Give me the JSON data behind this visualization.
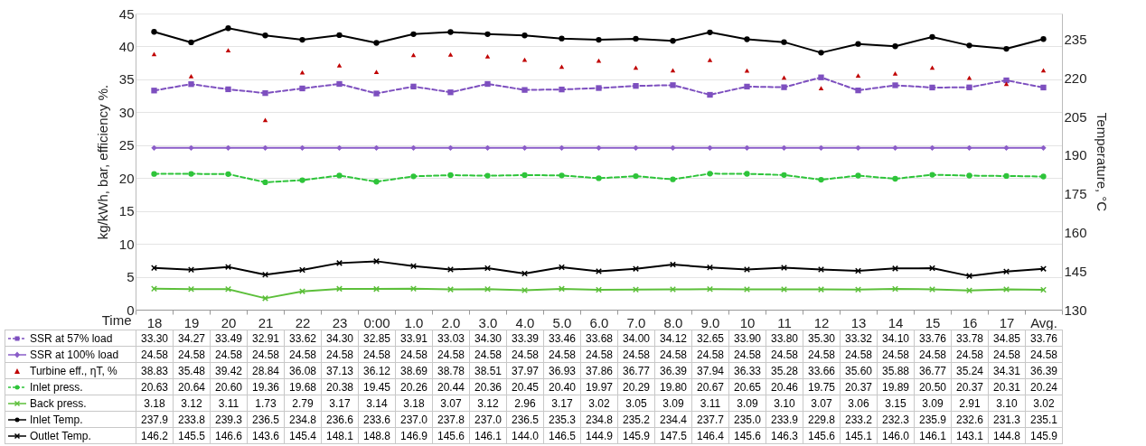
{
  "chart_data": {
    "type": "line",
    "xlabel": "Time",
    "ylabel": "kg/kWh, bar, efficiency %.",
    "y2label": "Temperature, °C",
    "categories": [
      "18",
      "19",
      "20",
      "21",
      "22",
      "23",
      "0:00",
      "1.0",
      "2.0",
      "3.0",
      "4.0",
      "5.0",
      "6.0",
      "7.0",
      "8.0",
      "9.0",
      "10",
      "11",
      "12",
      "13",
      "14",
      "15",
      "16",
      "17",
      "Avg."
    ],
    "ylim": [
      0,
      45
    ],
    "yticks": [
      0,
      5,
      10,
      15,
      20,
      25,
      30,
      35,
      40,
      45
    ],
    "y2lim": [
      130,
      245
    ],
    "y2ticks": [
      130,
      145,
      160,
      175,
      190,
      205,
      220,
      235
    ],
    "grid": "y",
    "legend": "bottom",
    "data_labels": true,
    "series": [
      {
        "name": "SSR at 57% load",
        "color": "#7d4fbf",
        "marker": "square",
        "line_style": "dashed",
        "values": [
          33.3,
          34.27,
          33.49,
          32.91,
          33.62,
          34.3,
          32.85,
          33.91,
          33.03,
          34.3,
          33.39,
          33.46,
          33.68,
          34.0,
          34.12,
          32.65,
          33.9,
          33.8,
          35.3,
          33.32,
          34.1,
          33.76,
          33.78,
          34.85,
          33.76
        ],
        "value_labels": [
          "33.30",
          "34.27",
          "33.49",
          "32.91",
          "33.62",
          "34.30",
          "32.85",
          "33.91",
          "33.03",
          "34.30",
          "33.39",
          "33.46",
          "33.68",
          "34.00",
          "34.12",
          "32.65",
          "33.90",
          "33.80",
          "35.30",
          "33.32",
          "34.10",
          "33.76",
          "33.78",
          "34.85",
          "33.76"
        ]
      },
      {
        "name": "SSR at 100% load",
        "color": "#8a5cc8",
        "marker": "diamond",
        "line_style": "solid",
        "values": [
          24.58,
          24.58,
          24.58,
          24.58,
          24.58,
          24.58,
          24.58,
          24.58,
          24.58,
          24.58,
          24.58,
          24.58,
          24.58,
          24.58,
          24.58,
          24.58,
          24.58,
          24.58,
          24.58,
          24.58,
          24.58,
          24.58,
          24.58,
          24.58,
          24.58
        ],
        "value_labels": [
          "24.58",
          "24.58",
          "24.58",
          "24.58",
          "24.58",
          "24.58",
          "24.58",
          "24.58",
          "24.58",
          "24.58",
          "24.58",
          "24.58",
          "24.58",
          "24.58",
          "24.58",
          "24.58",
          "24.58",
          "24.58",
          "24.58",
          "24.58",
          "24.58",
          "24.58",
          "24.58",
          "24.58",
          "24.58"
        ]
      },
      {
        "name": "Turbine eff., ηT, %",
        "type": "scatter",
        "color": "#c00000",
        "marker": "triangle",
        "values": [
          38.83,
          35.48,
          39.42,
          28.84,
          36.08,
          37.13,
          36.12,
          38.69,
          38.78,
          38.51,
          37.97,
          36.93,
          37.86,
          36.77,
          36.39,
          37.94,
          36.33,
          35.28,
          33.66,
          35.6,
          35.88,
          36.77,
          35.24,
          34.31,
          36.39
        ],
        "value_labels": [
          "38.83",
          "35.48",
          "39.42",
          "28.84",
          "36.08",
          "37.13",
          "36.12",
          "38.69",
          "38.78",
          "38.51",
          "37.97",
          "36.93",
          "37.86",
          "36.77",
          "36.39",
          "37.94",
          "36.33",
          "35.28",
          "33.66",
          "35.60",
          "35.88",
          "36.77",
          "35.24",
          "34.31",
          "36.39"
        ]
      },
      {
        "name": "Inlet press.",
        "color": "#2ec43a",
        "marker": "circle",
        "line_style": "dashed",
        "values": [
          20.63,
          20.64,
          20.6,
          19.36,
          19.68,
          20.38,
          19.45,
          20.26,
          20.44,
          20.36,
          20.45,
          20.4,
          19.97,
          20.29,
          19.8,
          20.67,
          20.65,
          20.46,
          19.75,
          20.37,
          19.89,
          20.5,
          20.37,
          20.31,
          20.24
        ],
        "value_labels": [
          "20.63",
          "20.64",
          "20.60",
          "19.36",
          "19.68",
          "20.38",
          "19.45",
          "20.26",
          "20.44",
          "20.36",
          "20.45",
          "20.40",
          "19.97",
          "20.29",
          "19.80",
          "20.67",
          "20.65",
          "20.46",
          "19.75",
          "20.37",
          "19.89",
          "20.50",
          "20.37",
          "20.31",
          "20.24"
        ]
      },
      {
        "name": "Back press.",
        "color": "#5cbf3a",
        "marker": "cross",
        "line_style": "solid",
        "values": [
          3.18,
          3.12,
          3.11,
          1.73,
          2.79,
          3.17,
          3.14,
          3.18,
          3.07,
          3.12,
          2.96,
          3.17,
          3.02,
          3.05,
          3.09,
          3.11,
          3.09,
          3.1,
          3.07,
          3.06,
          3.15,
          3.09,
          2.91,
          3.1,
          3.02
        ],
        "value_labels": [
          "3.18",
          "3.12",
          "3.11",
          "1.73",
          "2.79",
          "3.17",
          "3.14",
          "3.18",
          "3.07",
          "3.12",
          "2.96",
          "3.17",
          "3.02",
          "3.05",
          "3.09",
          "3.11",
          "3.09",
          "3.10",
          "3.07",
          "3.06",
          "3.15",
          "3.09",
          "2.91",
          "3.10",
          "3.02"
        ]
      },
      {
        "name": "Inlet Temp.",
        "color": "#000000",
        "marker": "circle",
        "line_style": "solid",
        "axis": "y2",
        "values": [
          237.9,
          233.8,
          239.3,
          236.5,
          234.8,
          236.6,
          233.6,
          237.0,
          237.8,
          237.0,
          236.5,
          235.3,
          234.8,
          235.2,
          234.4,
          237.7,
          235.0,
          233.9,
          229.8,
          233.2,
          232.3,
          235.9,
          232.6,
          231.3,
          235.1
        ],
        "value_labels": [
          "237.9",
          "233.8",
          "239.3",
          "236.5",
          "234.8",
          "236.6",
          "233.6",
          "237.0",
          "237.8",
          "237.0",
          "236.5",
          "235.3",
          "234.8",
          "235.2",
          "234.4",
          "237.7",
          "235.0",
          "233.9",
          "229.8",
          "233.2",
          "232.3",
          "235.9",
          "232.6",
          "231.3",
          "235.1"
        ]
      },
      {
        "name": "Outlet Temp.",
        "color": "#000000",
        "marker": "cross",
        "line_style": "solid",
        "axis": "y2",
        "values": [
          146.2,
          145.5,
          146.6,
          143.6,
          145.4,
          148.1,
          148.8,
          146.9,
          145.6,
          146.1,
          144.0,
          146.5,
          144.9,
          145.9,
          147.5,
          146.4,
          145.6,
          146.3,
          145.6,
          145.1,
          146.0,
          146.1,
          143.1,
          144.8,
          145.9
        ],
        "value_labels": [
          "146.2",
          "145.5",
          "146.6",
          "143.6",
          "145.4",
          "148.1",
          "148.8",
          "146.9",
          "145.6",
          "146.1",
          "144.0",
          "146.5",
          "144.9",
          "145.9",
          "147.5",
          "146.4",
          "145.6",
          "146.3",
          "145.6",
          "145.1",
          "146.0",
          "146.1",
          "143.1",
          "144.8",
          "145.9"
        ]
      }
    ]
  }
}
